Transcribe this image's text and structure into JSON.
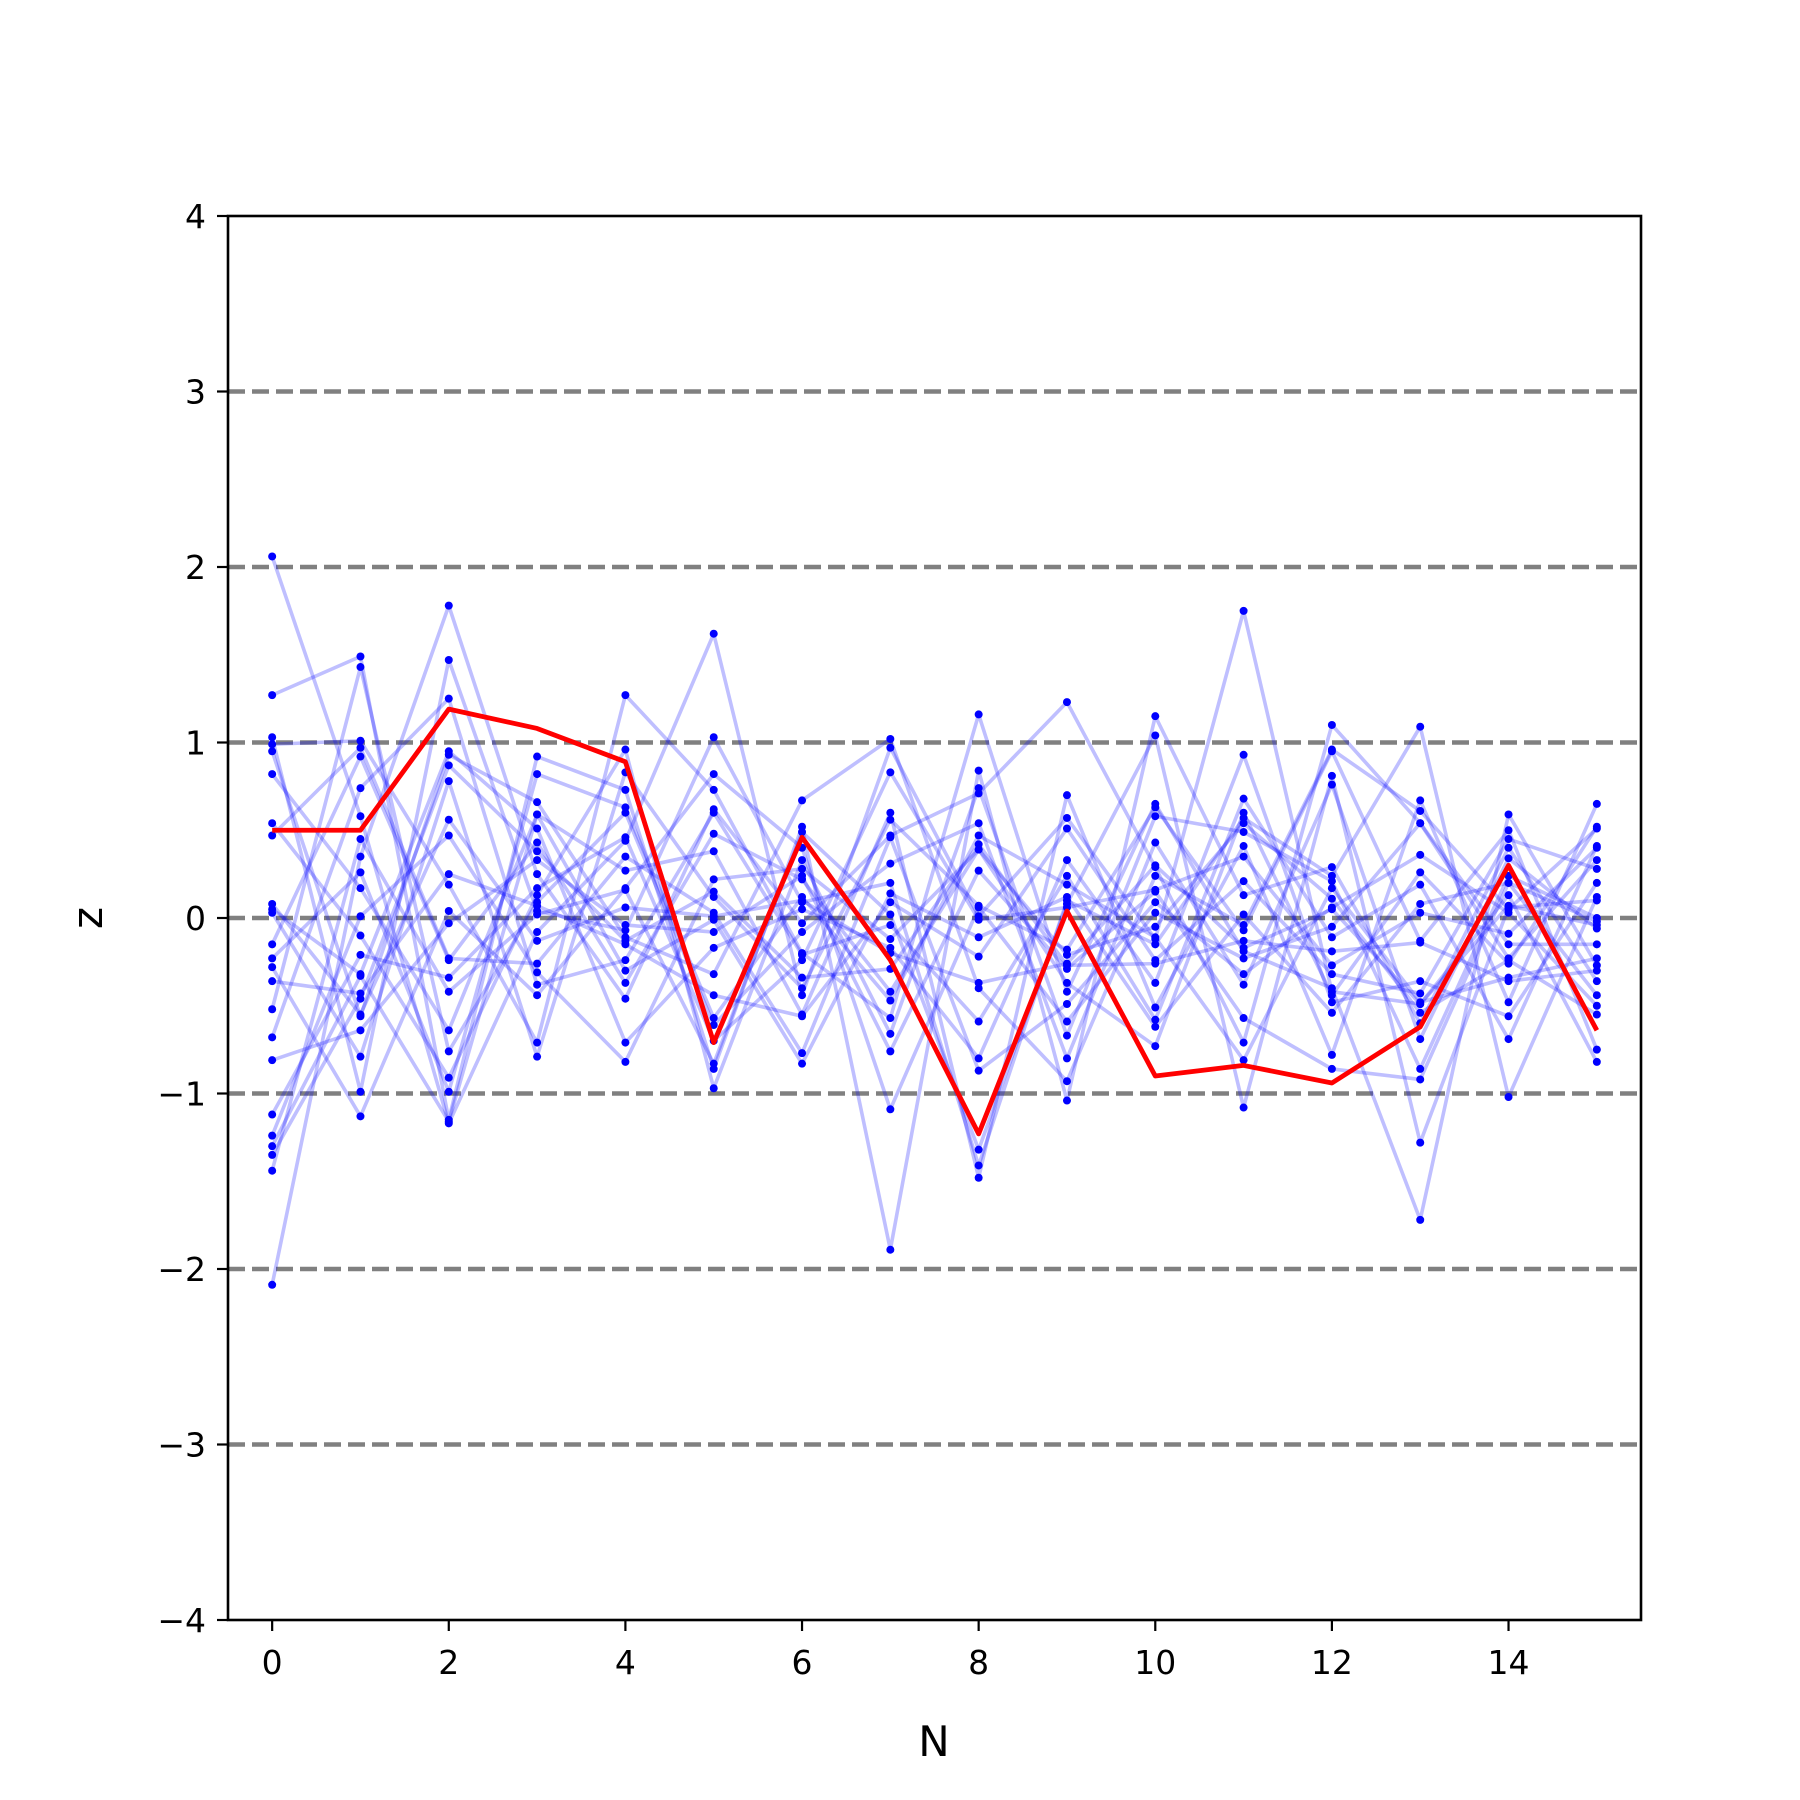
{
  "chart_data": {
    "type": "line",
    "title": "",
    "xlabel": "N",
    "ylabel": "z",
    "xlim": [
      -0.5,
      15.5
    ],
    "ylim": [
      -4,
      4
    ],
    "x_ticks": [
      0,
      2,
      4,
      6,
      8,
      10,
      12,
      14
    ],
    "x_tick_labels": [
      "0",
      "2",
      "4",
      "6",
      "8",
      "10",
      "12",
      "14"
    ],
    "y_ticks": [
      -4,
      -3,
      -2,
      -1,
      0,
      1,
      2,
      3,
      4
    ],
    "y_tick_labels": [
      "−4",
      "−3",
      "−2",
      "−1",
      "0",
      "1",
      "2",
      "3",
      "4"
    ],
    "reference_lines": {
      "y": [
        -3,
        -2,
        -1,
        0,
        1,
        2,
        3
      ],
      "style": "dashed",
      "color": "#808080"
    },
    "x": [
      0,
      1,
      2,
      3,
      4,
      5,
      6,
      7,
      8,
      9,
      10,
      11,
      12,
      13,
      14,
      15
    ],
    "highlight_series": {
      "color": "#ff0000",
      "values": [
        0.5,
        0.5,
        1.19,
        1.08,
        0.89,
        -0.71,
        0.46,
        -0.24,
        -1.23,
        0.04,
        -0.9,
        -0.84,
        -0.94,
        -0.62,
        0.3,
        -0.64
      ]
    },
    "background_series": {
      "color": "#0000ff",
      "line_opacity": 0.25,
      "markers": true,
      "series": [
        [
          2.06,
          0.58,
          -1.17,
          -0.08,
          0.44,
          1.62,
          -0.44,
          0.97,
          0.01,
          0.57,
          -0.12,
          1.75,
          -0.42,
          -0.49,
          0.13,
          -0.82
        ],
        [
          -2.09,
          0.35,
          1.78,
          0.25,
          -0.46,
          0.62,
          -0.03,
          0.47,
          0.71,
          1.23,
          0.29,
          -0.71,
          1.1,
          0.54,
          -0.23,
          0.33
        ],
        [
          1.27,
          1.49,
          -1.15,
          0.92,
          0.73,
          -0.86,
          0.52,
          -1.89,
          0.84,
          -1.04,
          1.15,
          0.13,
          0.29,
          -0.6,
          0.4,
          -0.36
        ],
        [
          1.03,
          -0.99,
          1.47,
          0.04,
          -0.07,
          1.03,
          0.09,
          0.2,
          -1.41,
          0.1,
          -0.15,
          0.57,
          0.24,
          1.09,
          -1.02,
          0.12
        ],
        [
          0.99,
          1.01,
          0.19,
          -0.71,
          1.27,
          0.73,
          -0.2,
          -0.57,
          1.16,
          -0.42,
          0.65,
          -0.19,
          -0.4,
          -1.72,
          0.59,
          -0.27
        ],
        [
          0.95,
          -0.56,
          0.93,
          0.66,
          -0.11,
          -0.32,
          0.67,
          1.02,
          -0.4,
          -0.93,
          0.24,
          -0.04,
          0.96,
          0.61,
          0.05,
          0.51
        ],
        [
          0.82,
          0.17,
          -0.64,
          0.59,
          0.27,
          0.38,
          -0.55,
          0.6,
          -1.48,
          0.7,
          -0.51,
          0.41,
          -0.78,
          0.67,
          -0.48,
          0.65
        ],
        [
          0.54,
          -0.1,
          -0.91,
          0.13,
          0.96,
          -0.97,
          0.33,
          -0.66,
          0.74,
          -0.67,
          0.58,
          0.49,
          0.21,
          -0.86,
          0.24,
          0.0
        ],
        [
          0.47,
          0.97,
          -0.23,
          -0.26,
          0.35,
          0.03,
          -0.77,
          0.46,
          -0.87,
          -0.49,
          0.09,
          -0.32,
          0.06,
          0.36,
          0.03,
          -0.5
        ],
        [
          0.05,
          -0.32,
          0.95,
          0.51,
          -0.71,
          -0.17,
          0.05,
          -0.17,
          -0.8,
          0.33,
          -0.37,
          0.93,
          -0.48,
          -0.36,
          -0.56,
          0.2
        ],
        [
          0.03,
          -0.79,
          0.78,
          -0.79,
          0.83,
          0.12,
          -0.4,
          0.56,
          0.07,
          -0.18,
          0.63,
          -0.07,
          0.95,
          -0.13,
          0.5,
          -0.75
        ],
        [
          -0.15,
          0.92,
          -0.24,
          0.43,
          -0.37,
          0.48,
          0.22,
          -0.42,
          0.39,
          -0.37,
          -0.73,
          0.6,
          -0.44,
          0.26,
          -0.26,
          0.52
        ],
        [
          -0.23,
          0.26,
          -0.99,
          0.82,
          0.63,
          -0.57,
          0.12,
          -0.47,
          0.47,
          0.19,
          -0.11,
          -0.81,
          0.17,
          -0.48,
          -0.34,
          -0.23
        ],
        [
          -0.28,
          -1.13,
          0.04,
          -0.44,
          0.17,
          0.82,
          0.4,
          -1.09,
          0.06,
          -0.59,
          0.03,
          -0.23,
          -0.05,
          0.54,
          -0.15,
          -0.15
        ],
        [
          -0.36,
          -0.43,
          0.25,
          0.07,
          -0.15,
          -0.44,
          -0.56,
          0.09,
          -0.22,
          0.51,
          -0.24,
          0.21,
          -0.32,
          -0.43,
          0.45,
          0.28
        ],
        [
          -0.52,
          1.43,
          -0.76,
          0.09,
          0.6,
          -0.61,
          -0.08,
          0.31,
          0.54,
          -0.8,
          0.43,
          -0.38,
          0.76,
          -0.69,
          0.34,
          -0.06
        ],
        [
          -0.68,
          0.74,
          1.25,
          -0.38,
          -0.24,
          0.6,
          -0.21,
          -0.04,
          -0.59,
          0.24,
          -0.58,
          0.68,
          -0.11,
          0.19,
          -0.69,
          0.41
        ],
        [
          -0.81,
          -0.64,
          -0.03,
          0.33,
          -0.04,
          -0.08,
          0.24,
          -0.76,
          0.27,
          -0.29,
          0.15,
          -0.57,
          -0.86,
          -0.92,
          0.2,
          -0.44
        ],
        [
          -1.12,
          -0.21,
          -0.34,
          0.17,
          0.46,
          -0.7,
          -0.24,
          0.83,
          -0.01,
          0.06,
          0.16,
          0.35,
          -0.27,
          0.03,
          -0.09,
          0.4
        ],
        [
          -1.24,
          0.01,
          0.47,
          -0.31,
          -0.82,
          0.22,
          0.28,
          -0.12,
          0.39,
          -0.21,
          -0.05,
          0.54,
          0.11,
          -0.54,
          -0.24,
          -0.55
        ],
        [
          -1.3,
          -0.33,
          -1.16,
          0.59,
          -0.3,
          -0.01,
          -0.83,
          0.14,
          -0.11,
          0.12,
          -0.62,
          0.02,
          -0.54,
          0.08,
          0.2,
          -0.02
        ],
        [
          -1.35,
          -0.46,
          0.87,
          0.38,
          -0.13,
          0.15,
          -0.34,
          -0.29,
          0.42,
          -0.27,
          -0.26,
          -0.13,
          -0.19,
          -0.14,
          -0.36,
          -0.3
        ],
        [
          -1.44,
          0.45,
          -0.42,
          0.02,
          0.16,
          -0.83,
          0.49,
          0.02,
          -1.32,
          0.08,
          1.04,
          -1.08,
          0.81,
          -1.28,
          0.06,
          0.1
        ],
        [
          0.08,
          -0.55,
          0.56,
          -0.13,
          0.06,
          0.01,
          0.1,
          -0.2,
          -0.37,
          -0.26,
          0.3,
          -0.17,
          0.05,
          -0.49,
          0.07,
          -0.04
        ]
      ]
    }
  }
}
